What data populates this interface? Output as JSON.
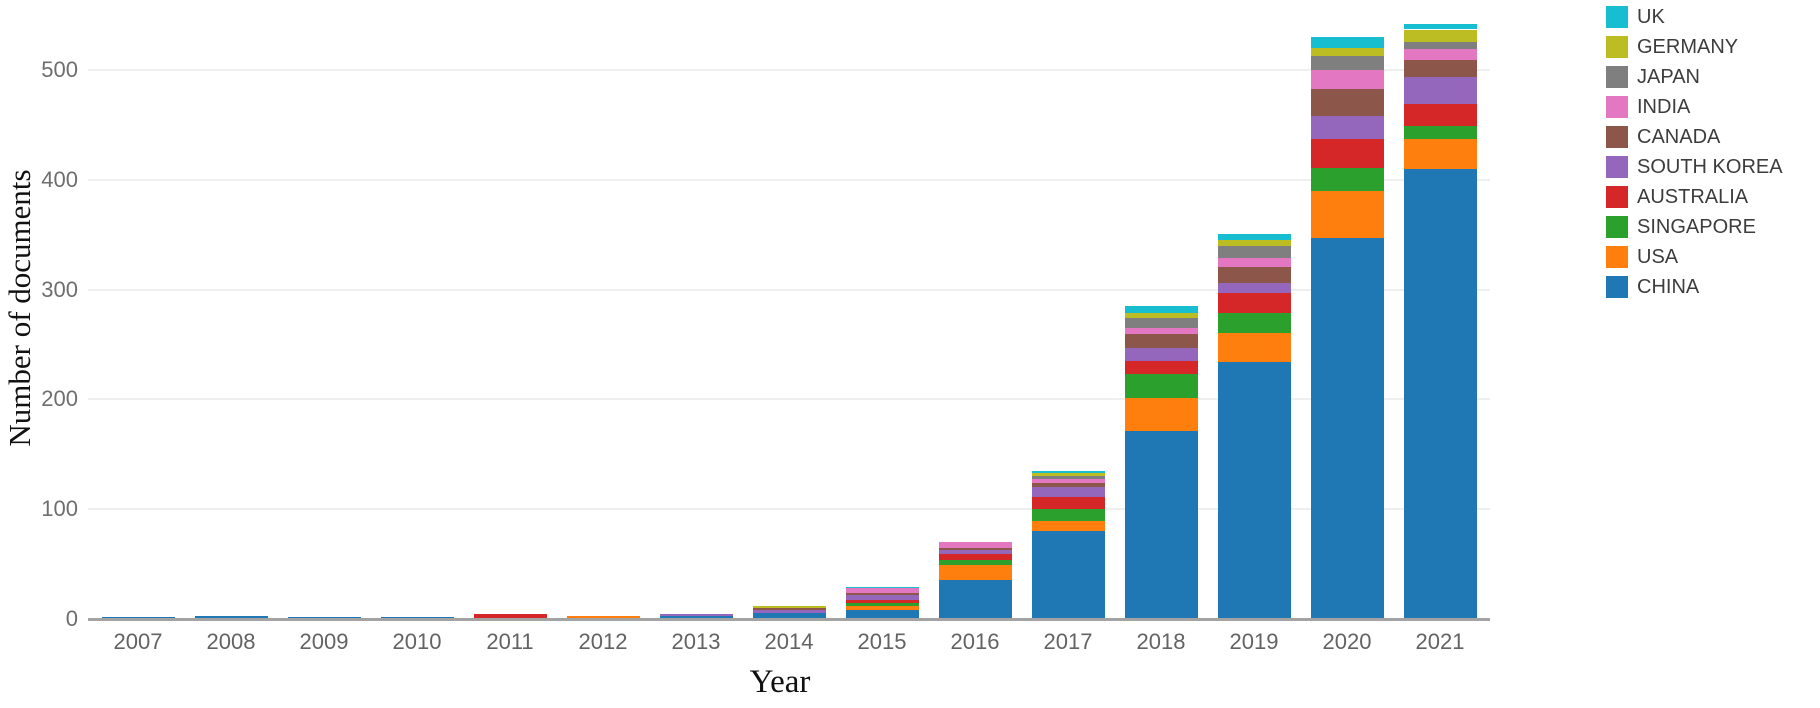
{
  "chart_data": {
    "type": "bar",
    "stacked": true,
    "title": "",
    "xlabel": "Year",
    "ylabel": "Number of documents",
    "categories": [
      "2007",
      "2008",
      "2009",
      "2010",
      "2011",
      "2012",
      "2013",
      "2014",
      "2015",
      "2016",
      "2017",
      "2018",
      "2019",
      "2020",
      "2021"
    ],
    "yticks": [
      0,
      100,
      200,
      300,
      400,
      500
    ],
    "ylim": [
      0,
      555
    ],
    "grid": true,
    "legend_position": "right-top",
    "series": [
      {
        "name": "CHINA",
        "color": "#1f77b4",
        "values": [
          1,
          2,
          1,
          1,
          0,
          0,
          2,
          5,
          7,
          35,
          79,
          170,
          233,
          346,
          409
        ]
      },
      {
        "name": "USA",
        "color": "#ff7f0e",
        "values": [
          0,
          0,
          0,
          0,
          0,
          2,
          0,
          0,
          4,
          13,
          9,
          30,
          27,
          43,
          27
        ]
      },
      {
        "name": "SINGAPORE",
        "color": "#2ca02c",
        "values": [
          0,
          0,
          0,
          0,
          0,
          0,
          0,
          0,
          3,
          5,
          11,
          22,
          18,
          21,
          12
        ]
      },
      {
        "name": "AUSTRALIA",
        "color": "#d62728",
        "values": [
          0,
          0,
          0,
          0,
          4,
          0,
          0,
          0,
          2,
          5,
          11,
          12,
          18,
          26,
          20
        ]
      },
      {
        "name": "SOUTH KOREA",
        "color": "#9467bd",
        "values": [
          0,
          0,
          0,
          0,
          0,
          0,
          2,
          2,
          5,
          4,
          9,
          12,
          9,
          21,
          25
        ]
      },
      {
        "name": "CANADA",
        "color": "#8c564b",
        "values": [
          0,
          0,
          0,
          0,
          0,
          0,
          0,
          2,
          2,
          2,
          4,
          13,
          15,
          25,
          15
        ]
      },
      {
        "name": "INDIA",
        "color": "#e377c2",
        "values": [
          0,
          0,
          0,
          0,
          0,
          0,
          0,
          0,
          4,
          5,
          4,
          5,
          8,
          17,
          10
        ]
      },
      {
        "name": "JAPAN",
        "color": "#7f7f7f",
        "values": [
          0,
          0,
          0,
          0,
          0,
          0,
          0,
          0,
          0,
          0,
          2,
          9,
          11,
          13,
          7
        ]
      },
      {
        "name": "GERMANY",
        "color": "#bcbd22",
        "values": [
          0,
          0,
          0,
          0,
          0,
          0,
          0,
          2,
          0,
          0,
          3,
          5,
          5,
          7,
          11
        ]
      },
      {
        "name": "UK",
        "color": "#17becf",
        "values": [
          0,
          0,
          0,
          0,
          0,
          0,
          0,
          0,
          1,
          0,
          2,
          6,
          6,
          10,
          5
        ]
      }
    ]
  }
}
